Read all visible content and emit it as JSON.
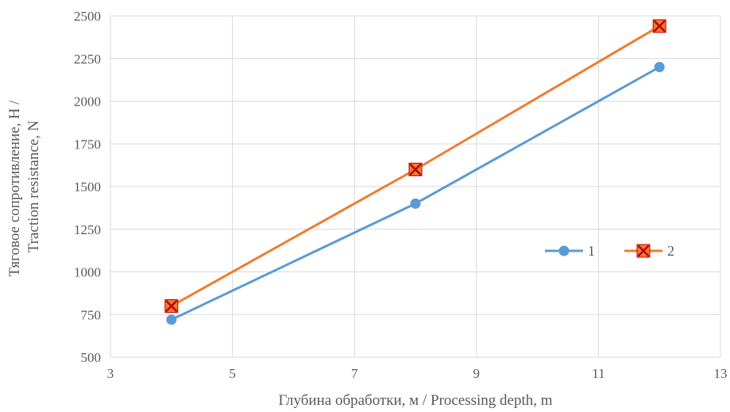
{
  "chart_data": {
    "type": "scatter",
    "title": "",
    "xlabel": "Глубина обработки, м / Processing depth, m",
    "ylabel_lines": [
      "Тяговое сопротивление, Н /",
      "Traction resistance, N"
    ],
    "xlim": [
      3,
      13
    ],
    "ylim": [
      500,
      2500
    ],
    "x_ticks": [
      3,
      5,
      7,
      9,
      11,
      13
    ],
    "y_ticks": [
      500,
      750,
      1000,
      1250,
      1500,
      1750,
      2000,
      2250,
      2500
    ],
    "grid": true,
    "legend_position": "right",
    "series": [
      {
        "name": "1",
        "color": "#5B9BD5",
        "marker": "circle",
        "points": [
          {
            "x": 4,
            "y": 720
          },
          {
            "x": 8,
            "y": 1400
          },
          {
            "x": 12,
            "y": 2200
          }
        ]
      },
      {
        "name": "2",
        "color": "#ED7D31",
        "marker": "x-square",
        "points": [
          {
            "x": 4,
            "y": 800
          },
          {
            "x": 8,
            "y": 1600
          },
          {
            "x": 12,
            "y": 2440
          }
        ]
      }
    ]
  }
}
